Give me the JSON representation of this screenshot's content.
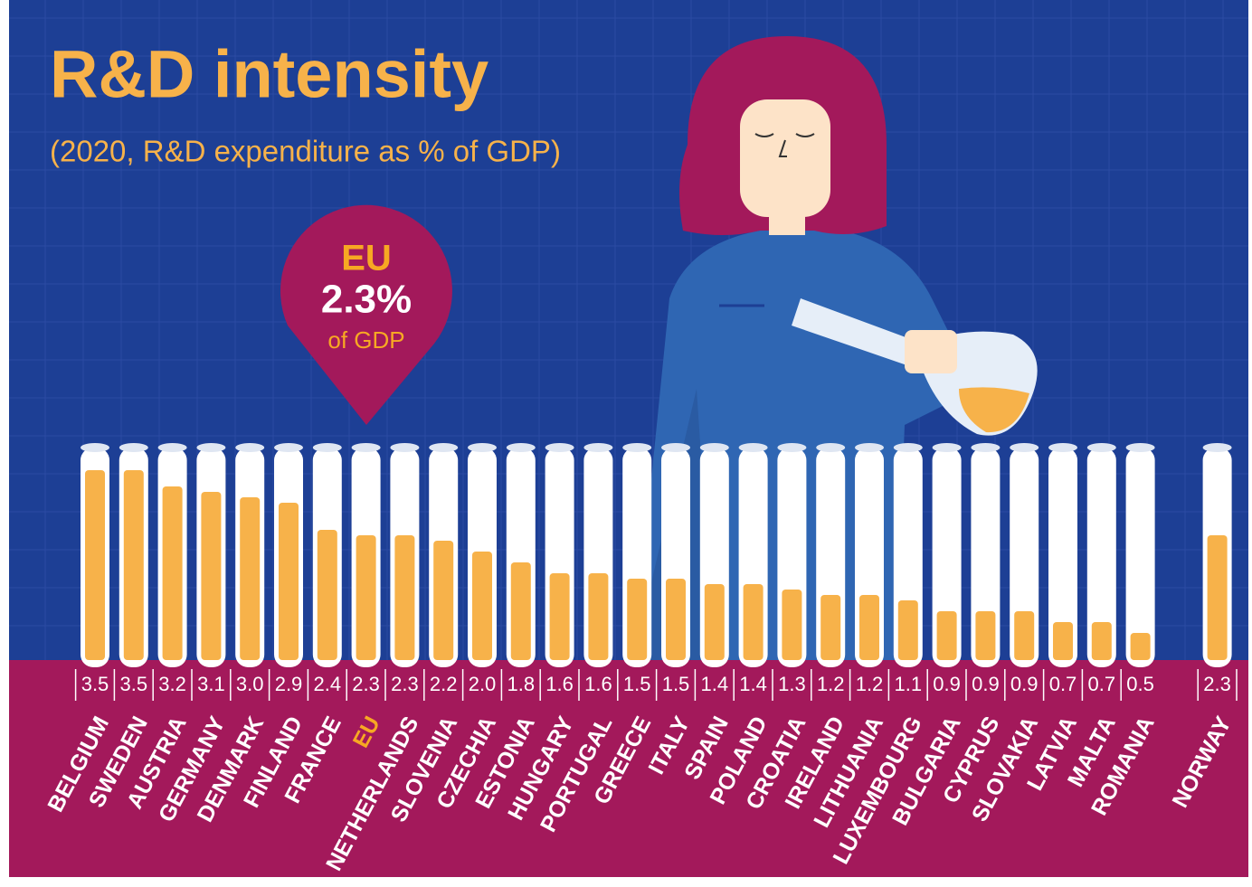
{
  "chart_data": {
    "type": "bar",
    "title": "R&D intensity",
    "subtitle": "(2020, R&D expenditure as % of GDP)",
    "callout": {
      "label": "EU",
      "value_text": "2.3%",
      "unit_text": "of GDP"
    },
    "categories": [
      "BELGIUM",
      "SWEDEN",
      "AUSTRIA",
      "GERMANY",
      "DENMARK",
      "FINLAND",
      "FRANCE",
      "EU",
      "NETHERLANDS",
      "SLOVENIA",
      "CZECHIA",
      "ESTONIA",
      "HUNGARY",
      "PORTUGAL",
      "GREECE",
      "ITALY",
      "SPAIN",
      "POLAND",
      "CROATIA",
      "IRELAND",
      "LITHUANIA",
      "LUXEMBOURG",
      "BULGARIA",
      "CYPRUS",
      "SLOVAKIA",
      "LATVIA",
      "MALTA",
      "ROMANIA",
      "NORWAY"
    ],
    "values": [
      3.5,
      3.5,
      3.2,
      3.1,
      3.0,
      2.9,
      2.4,
      2.3,
      2.3,
      2.2,
      2.0,
      1.8,
      1.6,
      1.6,
      1.5,
      1.5,
      1.4,
      1.4,
      1.3,
      1.2,
      1.2,
      1.1,
      0.9,
      0.9,
      0.9,
      0.7,
      0.7,
      0.5,
      2.3
    ],
    "value_labels": [
      "3.5",
      "3.5",
      "3.2",
      "3.1",
      "3.0",
      "2.9",
      "2.4",
      "2.3",
      "2.3",
      "2.2",
      "2.0",
      "1.8",
      "1.6",
      "1.6",
      "1.5",
      "1.5",
      "1.4",
      "1.4",
      "1.3",
      "1.2",
      "1.2",
      "1.1",
      "0.9",
      "0.9",
      "0.9",
      "0.7",
      "0.7",
      "0.5",
      "2.3"
    ],
    "color": "#f7b24a",
    "highlight_color": "#f7a823"
  }
}
